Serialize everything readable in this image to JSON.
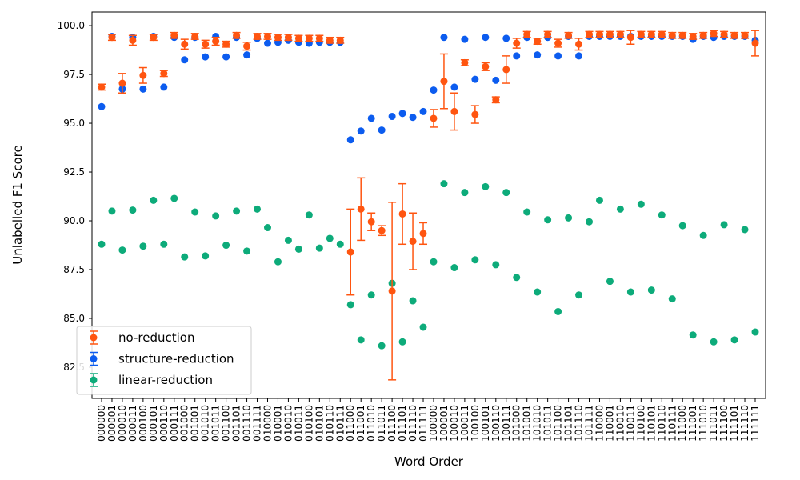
{
  "chart_data": {
    "type": "scatter",
    "title": "",
    "xlabel": "Word Order",
    "ylabel": "Unlabelled F1 Score",
    "ylim": [
      80.9,
      100.7
    ],
    "yticks": [
      "82.5",
      "85.0",
      "87.5",
      "90.0",
      "92.5",
      "95.0",
      "97.5",
      "100.0"
    ],
    "grid": false,
    "legend_position": "lower-left",
    "categories": [
      "000000",
      "000001",
      "000010",
      "000011",
      "000100",
      "000101",
      "000110",
      "000111",
      "001000",
      "001001",
      "001010",
      "001011",
      "001100",
      "001101",
      "001110",
      "001111",
      "010000",
      "010001",
      "010010",
      "010011",
      "010100",
      "010101",
      "010110",
      "010111",
      "011000",
      "011001",
      "011010",
      "011011",
      "011100",
      "011101",
      "011110",
      "011111",
      "100000",
      "100001",
      "100010",
      "100011",
      "100100",
      "100101",
      "100110",
      "100111",
      "101000",
      "101001",
      "101010",
      "101011",
      "101100",
      "101101",
      "101110",
      "101111",
      "110000",
      "110001",
      "110010",
      "110011",
      "110100",
      "110101",
      "110110",
      "110111",
      "111000",
      "111001",
      "111010",
      "111011",
      "111100",
      "111101",
      "111110",
      "111111"
    ],
    "series": [
      {
        "name": "no-reduction",
        "color": "#ff5510",
        "values": [
          96.85,
          99.4,
          97.05,
          99.25,
          97.45,
          99.4,
          97.55,
          99.5,
          99.05,
          99.45,
          99.05,
          99.2,
          99.05,
          99.5,
          98.95,
          99.45,
          99.45,
          99.4,
          99.4,
          99.35,
          99.35,
          99.35,
          99.25,
          99.25,
          88.4,
          90.6,
          89.95,
          89.5,
          86.4,
          90.35,
          88.95,
          89.35,
          95.25,
          97.15,
          95.6,
          98.1,
          95.45,
          97.9,
          96.2,
          97.75,
          99.1,
          99.55,
          99.2,
          99.55,
          99.1,
          99.5,
          99.05,
          99.55,
          99.55,
          99.55,
          99.55,
          99.4,
          99.55,
          99.55,
          99.55,
          99.5,
          99.5,
          99.45,
          99.5,
          99.6,
          99.55,
          99.5,
          99.5,
          99.1
        ],
        "err": [
          0.15,
          0.15,
          0.5,
          0.25,
          0.4,
          0.15,
          0.15,
          0.15,
          0.25,
          0.15,
          0.2,
          0.2,
          0.15,
          0.15,
          0.2,
          0.15,
          0.15,
          0.15,
          0.15,
          0.15,
          0.15,
          0.15,
          0.15,
          0.15,
          2.2,
          1.6,
          0.45,
          0.25,
          4.55,
          1.55,
          1.45,
          0.55,
          0.45,
          1.4,
          0.95,
          0.15,
          0.45,
          0.2,
          0.15,
          0.7,
          0.25,
          0.15,
          0.15,
          0.15,
          0.2,
          0.15,
          0.3,
          0.15,
          0.15,
          0.15,
          0.15,
          0.35,
          0.15,
          0.15,
          0.15,
          0.15,
          0.15,
          0.15,
          0.15,
          0.15,
          0.15,
          0.15,
          0.15,
          0.65
        ]
      },
      {
        "name": "structure-reduction",
        "color": "#0c5cef",
        "values": [
          95.85,
          99.45,
          96.75,
          99.4,
          96.75,
          99.45,
          96.85,
          99.4,
          98.25,
          99.4,
          98.4,
          99.45,
          98.4,
          99.4,
          98.5,
          99.35,
          99.1,
          99.15,
          99.25,
          99.15,
          99.1,
          99.15,
          99.15,
          99.15,
          94.15,
          94.6,
          95.25,
          94.65,
          95.35,
          95.5,
          95.3,
          95.6,
          96.7,
          99.4,
          96.85,
          99.3,
          97.25,
          99.4,
          97.2,
          99.35,
          98.45,
          99.4,
          98.5,
          99.4,
          98.45,
          99.45,
          98.45,
          99.45,
          99.45,
          99.45,
          99.45,
          99.45,
          99.45,
          99.45,
          99.45,
          99.45,
          99.45,
          99.3,
          99.45,
          99.4,
          99.45,
          99.45,
          99.45,
          99.25
        ]
      },
      {
        "name": "linear-reduction",
        "color": "#0dab7a",
        "values": [
          88.8,
          90.5,
          88.5,
          90.55,
          88.7,
          91.05,
          88.8,
          91.15,
          88.15,
          90.45,
          88.2,
          90.25,
          88.75,
          90.5,
          88.45,
          90.6,
          89.65,
          87.9,
          89.0,
          88.55,
          90.3,
          88.6,
          89.1,
          88.8,
          85.7,
          83.9,
          86.2,
          83.6,
          86.8,
          83.8,
          85.9,
          84.55,
          87.9,
          91.9,
          87.6,
          91.45,
          88.0,
          91.75,
          87.75,
          91.45,
          87.1,
          90.45,
          86.35,
          90.05,
          85.35,
          90.15,
          86.2,
          89.95,
          91.05,
          86.9,
          90.6,
          86.35,
          90.85,
          86.45,
          90.3,
          86.0,
          89.75,
          84.15,
          89.25,
          83.8,
          89.8,
          83.9,
          89.55,
          84.3
        ]
      }
    ]
  },
  "legend": {
    "items": [
      "no-reduction",
      "structure-reduction",
      "linear-reduction"
    ]
  }
}
